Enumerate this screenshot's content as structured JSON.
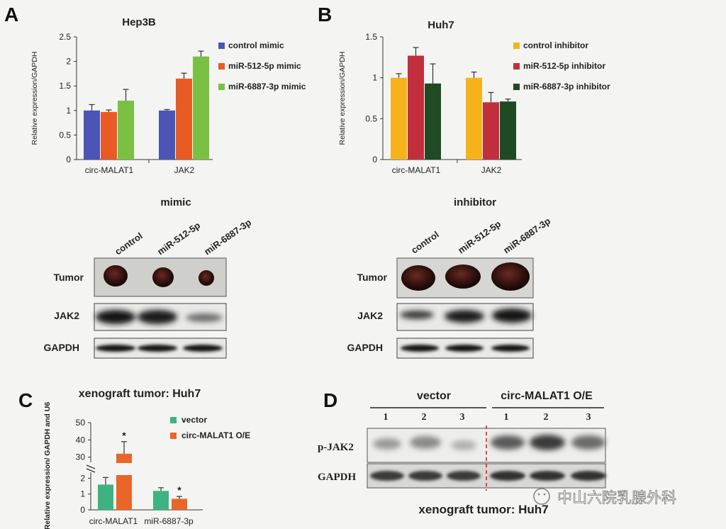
{
  "panels": {
    "A": {
      "letter": "A",
      "title": "Hep3B",
      "chart_data": {
        "type": "bar",
        "ylabel": "Relative expression/GAPDH",
        "ylim": [
          0,
          2.5
        ],
        "yticks": [
          "0",
          "0.5",
          "1",
          "1.5",
          "2",
          "2.5"
        ],
        "categories": [
          "circ-MALAT1",
          "JAK2"
        ],
        "series": [
          {
            "name": "control mimic",
            "color": "#4a55b5",
            "values": [
              1.0,
              1.0
            ],
            "errors": [
              0.12,
              0.02
            ]
          },
          {
            "name": "miR-512-5p mimic",
            "color": "#e85b24",
            "values": [
              0.97,
              1.65
            ],
            "errors": [
              0.04,
              0.11
            ]
          },
          {
            "name": "miR-6887-3p mimic",
            "color": "#7ac143",
            "values": [
              1.2,
              2.1
            ],
            "errors": [
              0.23,
              0.11
            ]
          }
        ]
      },
      "blot": {
        "title": "mimic",
        "lanes": [
          "control",
          "miR-512-5p",
          "miR-6887-3p"
        ],
        "rows": [
          "Tumor",
          "JAK2",
          "GAPDH"
        ]
      }
    },
    "B": {
      "letter": "B",
      "title": "Huh7",
      "chart_data": {
        "type": "bar",
        "ylabel": "Relative expression/GAPDH",
        "ylim": [
          0,
          1.5
        ],
        "yticks": [
          "0",
          "0.5",
          "1",
          "1.5"
        ],
        "categories": [
          "circ-MALAT1",
          "JAK2"
        ],
        "series": [
          {
            "name": "control inhibitor",
            "color": "#f5b21b",
            "values": [
              1.0,
              1.0
            ],
            "errors": [
              0.05,
              0.07
            ]
          },
          {
            "name": "miR-512-5p inhibitor",
            "color": "#c22f3c",
            "values": [
              1.27,
              0.7
            ],
            "errors": [
              0.1,
              0.12
            ]
          },
          {
            "name": "miR-6887-3p inhibitor",
            "color": "#1f4a24",
            "values": [
              0.93,
              0.71
            ],
            "errors": [
              0.24,
              0.03
            ]
          }
        ]
      },
      "blot": {
        "title": "inhibitor",
        "lanes": [
          "control",
          "miR-512-5p",
          "miR-6887-3p"
        ],
        "rows": [
          "Tumor",
          "JAK2",
          "GAPDH"
        ]
      }
    },
    "C": {
      "letter": "C",
      "title": "xenograft tumor: Huh7",
      "chart_data": {
        "type": "bar",
        "ylabel": "Relative expression/ GAPDH and U6",
        "yticks_lower": [
          "0",
          "1",
          "2"
        ],
        "yticks_upper": [
          "30",
          "40",
          "50"
        ],
        "axis_break": true,
        "categories": [
          "circ-MALAT1",
          "miR-6887-3p"
        ],
        "series": [
          {
            "name": "vector",
            "color": "#3db382",
            "values": [
              1.6,
              1.2
            ],
            "errors": [
              0.45,
              0.2
            ]
          },
          {
            "name": "circ-MALAT1 O/E",
            "color": "#e8662a",
            "values": [
              32,
              0.7
            ],
            "errors": [
              7,
              0.15
            ]
          }
        ],
        "significance": [
          "*",
          "*"
        ]
      }
    },
    "D": {
      "letter": "D",
      "groups": [
        "vector",
        "circ-MALAT1 O/E"
      ],
      "lanes": [
        "1",
        "2",
        "3",
        "1",
        "2",
        "3"
      ],
      "rows": [
        "p-JAK2",
        "GAPDH"
      ],
      "caption": "xenograft tumor: Huh7"
    }
  },
  "watermark": "中山六院乳腺外科"
}
